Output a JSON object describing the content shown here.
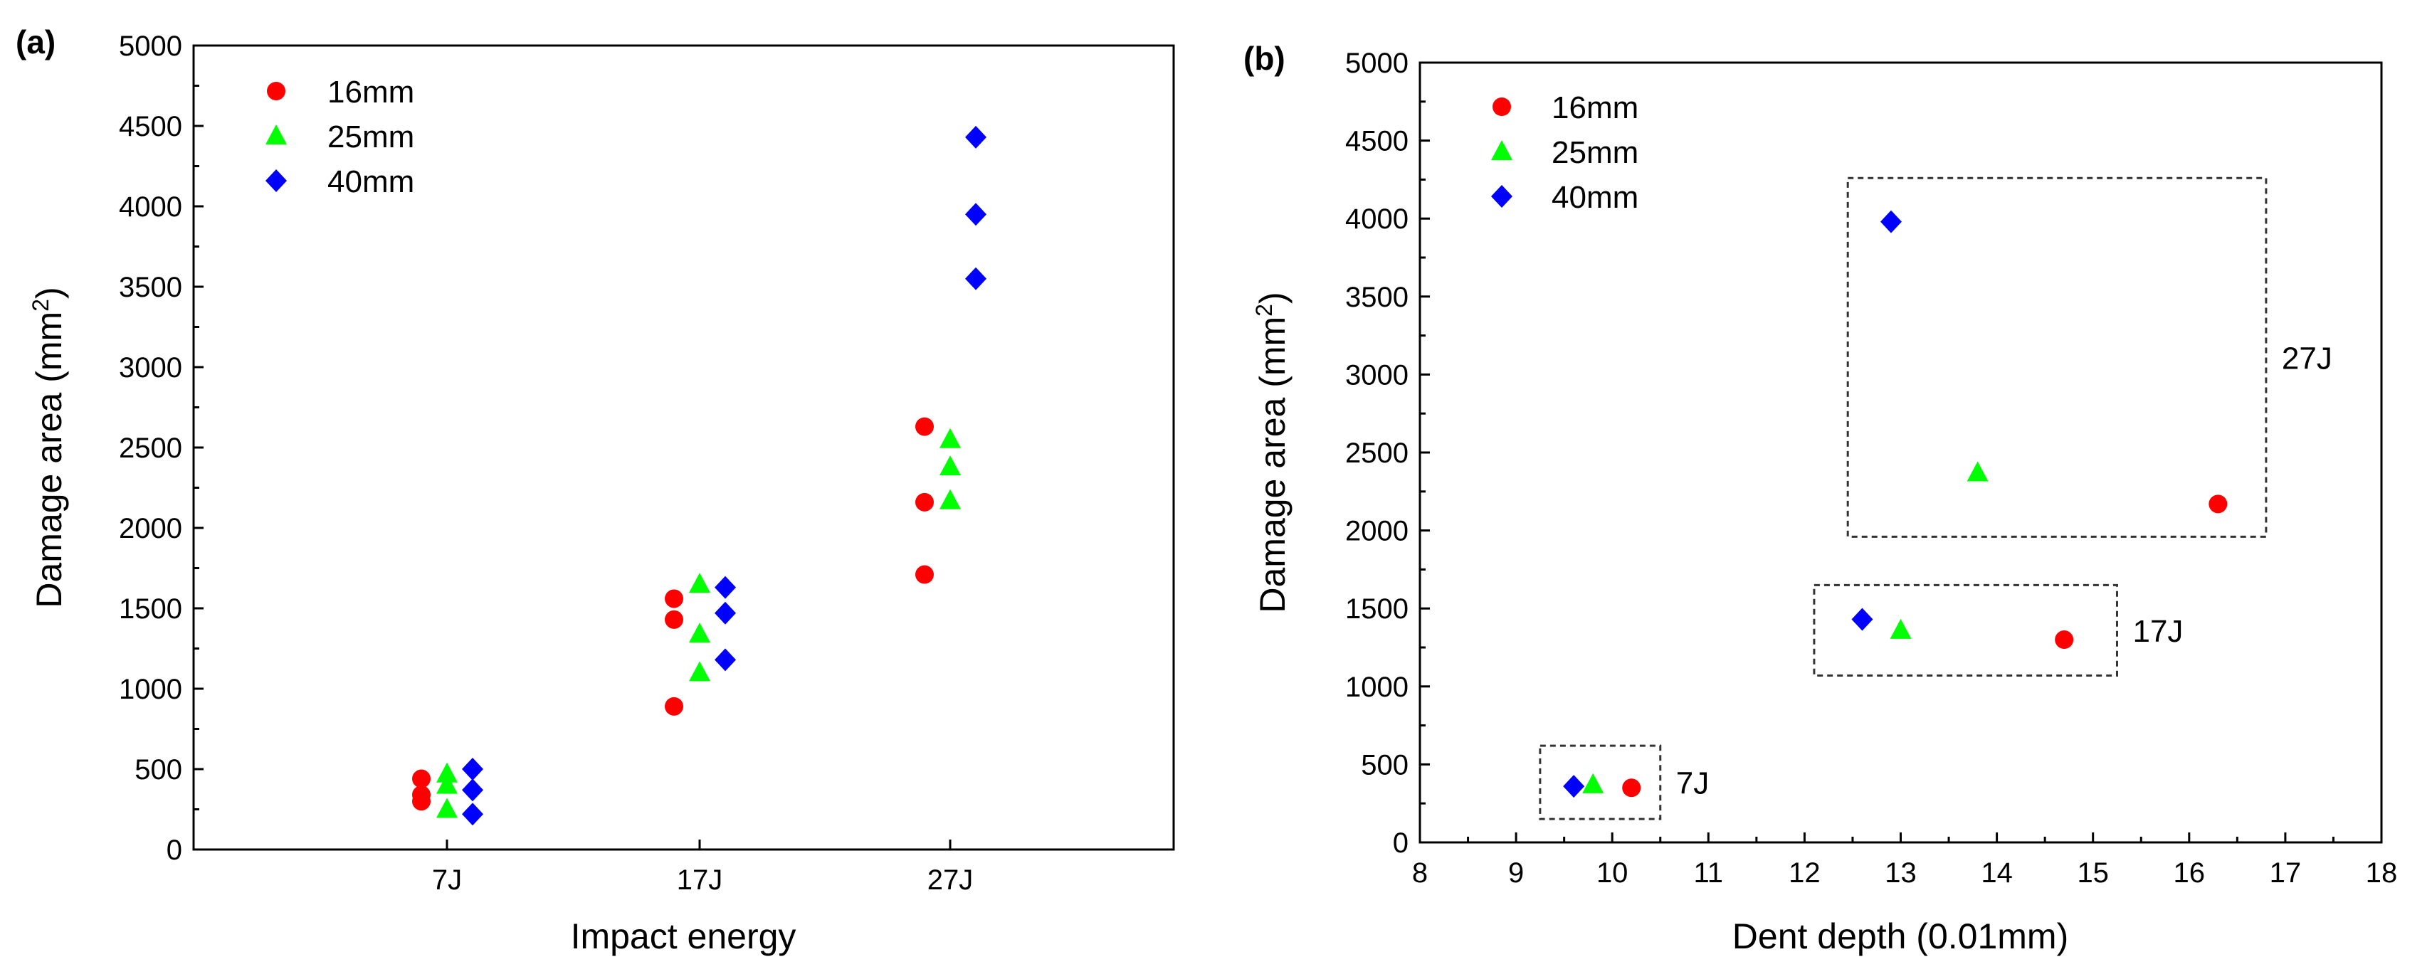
{
  "chart_data": [
    {
      "panel_label": "(a)",
      "type": "scatter",
      "xlabel": "Impact energy",
      "ylabel": "Damage area (mm",
      "ylabel_superscript": "2",
      "ylabel_suffix": ")",
      "categories": [
        "7J",
        "17J",
        "27J"
      ],
      "ylim": [
        0,
        5000
      ],
      "yticks": [
        "0",
        "500",
        "1000",
        "1500",
        "2000",
        "2500",
        "3000",
        "3500",
        "4000",
        "4500",
        "5000"
      ],
      "legend_position": "top-left",
      "series": [
        {
          "name": "16mm",
          "marker": "circle",
          "color": "#ff0000",
          "points": [
            {
              "category": "7J",
              "y": 440
            },
            {
              "category": "7J",
              "y": 340
            },
            {
              "category": "7J",
              "y": 300
            },
            {
              "category": "17J",
              "y": 1560
            },
            {
              "category": "17J",
              "y": 1430
            },
            {
              "category": "17J",
              "y": 890
            },
            {
              "category": "27J",
              "y": 2630
            },
            {
              "category": "27J",
              "y": 2160
            },
            {
              "category": "27J",
              "y": 1710
            }
          ]
        },
        {
          "name": "25mm",
          "marker": "triangle",
          "color": "#00ff00",
          "points": [
            {
              "category": "7J",
              "y": 470
            },
            {
              "category": "7J",
              "y": 400
            },
            {
              "category": "7J",
              "y": 250
            },
            {
              "category": "17J",
              "y": 1650
            },
            {
              "category": "17J",
              "y": 1340
            },
            {
              "category": "17J",
              "y": 1100
            },
            {
              "category": "27J",
              "y": 2550
            },
            {
              "category": "27J",
              "y": 2380
            },
            {
              "category": "27J",
              "y": 2170
            }
          ]
        },
        {
          "name": "40mm",
          "marker": "diamond",
          "color": "#0000ff",
          "points": [
            {
              "category": "7J",
              "y": 500
            },
            {
              "category": "7J",
              "y": 370
            },
            {
              "category": "7J",
              "y": 220
            },
            {
              "category": "17J",
              "y": 1630
            },
            {
              "category": "17J",
              "y": 1470
            },
            {
              "category": "17J",
              "y": 1180
            },
            {
              "category": "27J",
              "y": 4430
            },
            {
              "category": "27J",
              "y": 3950
            },
            {
              "category": "27J",
              "y": 3550
            }
          ]
        }
      ]
    },
    {
      "panel_label": "(b)",
      "type": "scatter",
      "xlabel": "Dent depth (0.01mm)",
      "ylabel": "Damage area (mm",
      "ylabel_superscript": "2",
      "ylabel_suffix": ")",
      "xlim": [
        8,
        18
      ],
      "ylim": [
        0,
        5000
      ],
      "xticks": [
        "8",
        "9",
        "10",
        "11",
        "12",
        "13",
        "14",
        "15",
        "16",
        "17",
        "18"
      ],
      "yticks": [
        "0",
        "500",
        "1000",
        "1500",
        "2000",
        "2500",
        "3000",
        "3500",
        "4000",
        "4500",
        "5000"
      ],
      "legend_position": "top-left",
      "series": [
        {
          "name": "16mm",
          "marker": "circle",
          "color": "#ff0000",
          "points": [
            {
              "x": 10.2,
              "y": 350
            },
            {
              "x": 14.7,
              "y": 1300
            },
            {
              "x": 16.3,
              "y": 2170
            }
          ]
        },
        {
          "name": "25mm",
          "marker": "triangle",
          "color": "#00ff00",
          "points": [
            {
              "x": 9.8,
              "y": 370
            },
            {
              "x": 13.0,
              "y": 1360
            },
            {
              "x": 13.8,
              "y": 2370
            }
          ]
        },
        {
          "name": "40mm",
          "marker": "diamond",
          "color": "#0000ff",
          "points": [
            {
              "x": 9.6,
              "y": 360
            },
            {
              "x": 12.6,
              "y": 1430
            },
            {
              "x": 12.9,
              "y": 3980
            }
          ]
        }
      ],
      "annotations": [
        {
          "label": "7J",
          "box_x": [
            9.25,
            10.5
          ],
          "box_y": [
            150,
            620
          ]
        },
        {
          "label": "17J",
          "box_x": [
            12.1,
            15.25
          ],
          "box_y": [
            1070,
            1650
          ]
        },
        {
          "label": "27J",
          "box_x": [
            12.45,
            16.8
          ],
          "box_y": [
            1960,
            4260
          ]
        }
      ]
    }
  ]
}
